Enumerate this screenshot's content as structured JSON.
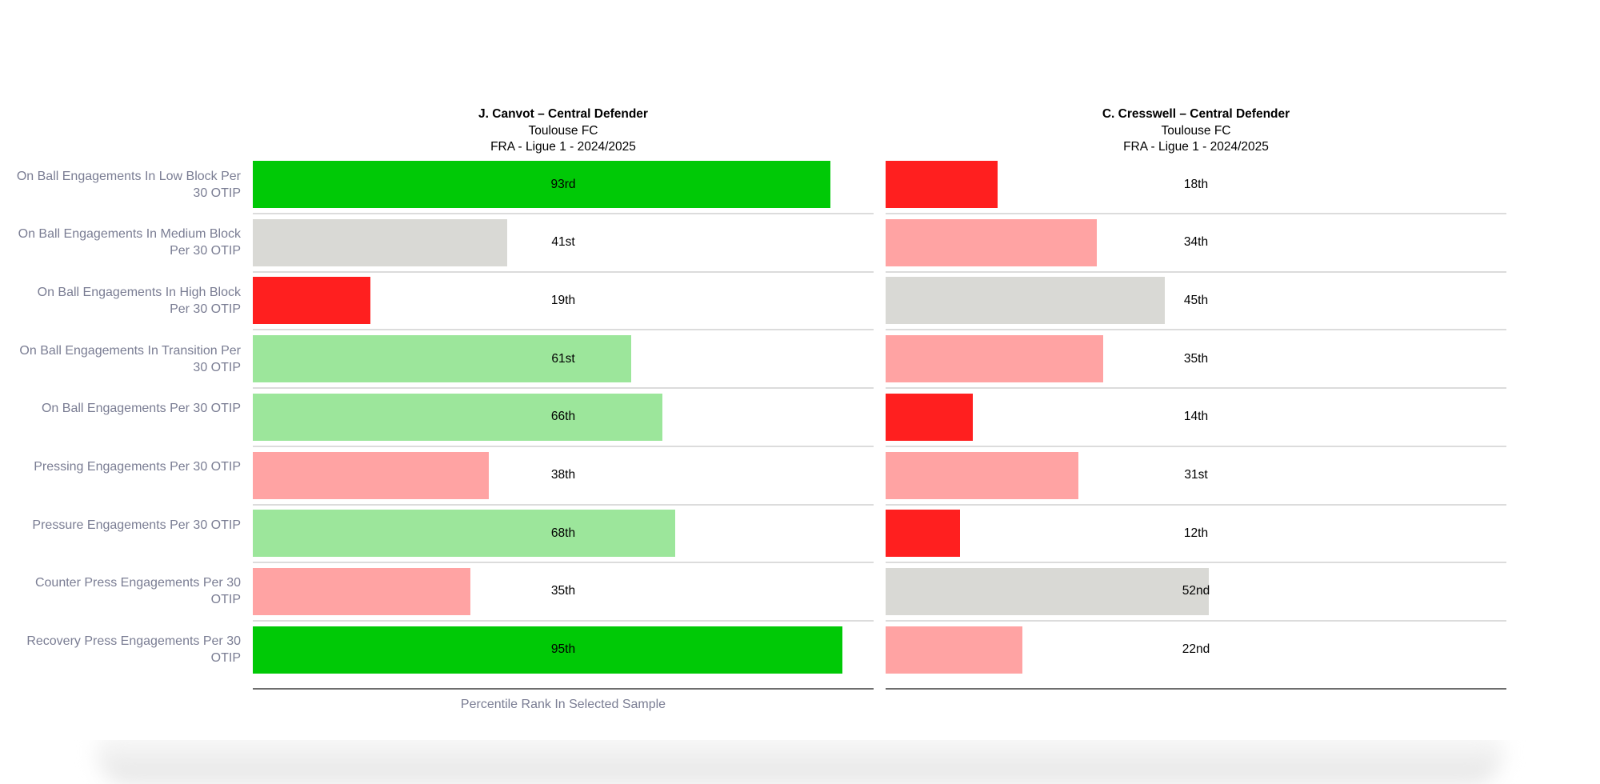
{
  "chart_data": {
    "type": "bar",
    "orientation": "horizontal",
    "xlabel": "Percentile Rank In Selected Sample",
    "xlim": [
      0,
      100
    ],
    "categories": [
      "On Ball Engagements In Low Block Per 30 OTIP",
      "On Ball Engagements In Medium Block Per 30 OTIP",
      "On Ball Engagements In High Block Per 30 OTIP",
      "On Ball Engagements In Transition Per 30 OTIP",
      "On Ball Engagements Per 30 OTIP",
      "Pressing Engagements Per 30 OTIP",
      "Pressure Engagements Per 30 OTIP",
      "Counter Press Engagements Per 30 OTIP",
      "Recovery Press Engagements Per 30 OTIP"
    ],
    "series": [
      {
        "name": "J. Canvot – Central Defender",
        "team": "Toulouse FC",
        "competition": "FRA - Ligue 1 - 2024/2025",
        "values": [
          93,
          41,
          19,
          61,
          66,
          38,
          68,
          35,
          95
        ],
        "labels": [
          "93rd",
          "41st",
          "19th",
          "61st",
          "66th",
          "38th",
          "68th",
          "35th",
          "95th"
        ]
      },
      {
        "name": "C. Cresswell – Central Defender",
        "team": "Toulouse FC",
        "competition": "FRA - Ligue 1 - 2024/2025",
        "values": [
          18,
          34,
          45,
          35,
          14,
          31,
          12,
          52,
          22
        ],
        "labels": [
          "18th",
          "34th",
          "45th",
          "35th",
          "14th",
          "31st",
          "12th",
          "52nd",
          "22nd"
        ]
      }
    ],
    "color_scale": {
      "very_low": "#ff1f1f",
      "low": "#ffa3a3",
      "average": "#d9d9d5",
      "high": "#9ce69b",
      "very_high": "#00c906"
    }
  }
}
